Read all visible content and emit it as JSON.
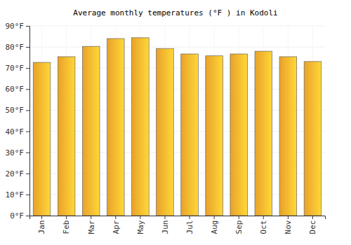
{
  "chart_data": {
    "type": "bar",
    "title": "Average monthly temperatures (°F ) in Kodoli",
    "categories": [
      "Jan",
      "Feb",
      "Mar",
      "Apr",
      "May",
      "Jun",
      "Jul",
      "Aug",
      "Sep",
      "Oct",
      "Nov",
      "Dec"
    ],
    "values": [
      72.7,
      75.4,
      80.3,
      84.0,
      84.4,
      79.3,
      76.7,
      75.8,
      76.7,
      78.0,
      75.4,
      73.1
    ],
    "color": "#ffb02e",
    "ylim": [
      0,
      90
    ],
    "yticks": [
      {
        "value": 0,
        "label": "0°F"
      },
      {
        "value": 10,
        "label": "10°F"
      },
      {
        "value": 20,
        "label": "20°F"
      },
      {
        "value": 30,
        "label": "30°F"
      },
      {
        "value": 40,
        "label": "40°F"
      },
      {
        "value": 50,
        "label": "50°F"
      },
      {
        "value": 60,
        "label": "60°F"
      },
      {
        "value": 70,
        "label": "70°F"
      },
      {
        "value": 80,
        "label": "80°F"
      },
      {
        "value": 90,
        "label": "90°F"
      }
    ],
    "grid": true
  }
}
